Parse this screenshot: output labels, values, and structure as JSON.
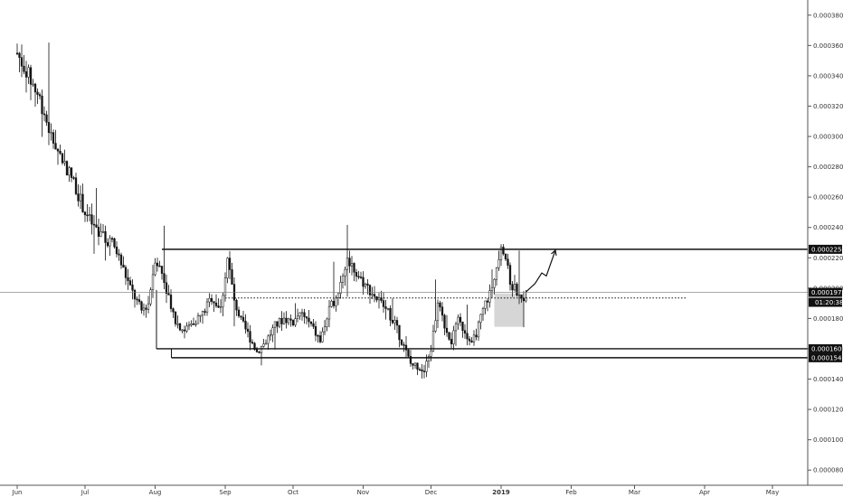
{
  "chart_data": {
    "type": "candlestick",
    "ylim": [
      7e-05,
      0.00039
    ],
    "y_ticks": [
      "0.0000800",
      "0.0001000",
      "0.0001200",
      "0.0001400",
      "0.0001600",
      "0.0001800",
      "0.0002000",
      "0.0002200",
      "0.0002400",
      "0.0002600",
      "0.0002800",
      "0.0003000",
      "0.0003200",
      "0.0003400",
      "0.0003600",
      "0.0003800"
    ],
    "x_ticks": [
      {
        "label": "Jun",
        "day": 0
      },
      {
        "label": "Jul",
        "day": 30
      },
      {
        "label": "Aug",
        "day": 61
      },
      {
        "label": "Sep",
        "day": 92
      },
      {
        "label": "Oct",
        "day": 122
      },
      {
        "label": "Nov",
        "day": 153
      },
      {
        "label": "Dec",
        "day": 183
      },
      {
        "label": "2019",
        "day": 214,
        "bold": true
      },
      {
        "label": "Feb",
        "day": 245
      },
      {
        "label": "Mar",
        "day": 273
      },
      {
        "label": "Apr",
        "day": 304
      },
      {
        "label": "May",
        "day": 334
      }
    ],
    "price_path": [
      [
        0,
        0.000355
      ],
      [
        5,
        0.00034
      ],
      [
        10,
        0.000325
      ],
      [
        15,
        0.0003
      ],
      [
        20,
        0.000285
      ],
      [
        25,
        0.00027
      ],
      [
        30,
        0.00025
      ],
      [
        36,
        0.000235
      ],
      [
        42,
        0.00023
      ],
      [
        45,
        0.00022
      ],
      [
        50,
        0.0002
      ],
      [
        55,
        0.000185
      ],
      [
        58,
        0.00019
      ],
      [
        61,
        0.00022
      ],
      [
        64,
        0.00021
      ],
      [
        67,
        0.000195
      ],
      [
        70,
        0.000178
      ],
      [
        74,
        0.000172
      ],
      [
        78,
        0.000178
      ],
      [
        82,
        0.000183
      ],
      [
        86,
        0.000194
      ],
      [
        90,
        0.000186
      ],
      [
        93,
        0.00022
      ],
      [
        96,
        0.000192
      ],
      [
        99,
        0.000178
      ],
      [
        102,
        0.00017
      ],
      [
        106,
        0.000158
      ],
      [
        110,
        0.000165
      ],
      [
        114,
        0.000175
      ],
      [
        118,
        0.00018
      ],
      [
        122,
        0.000178
      ],
      [
        126,
        0.000183
      ],
      [
        130,
        0.000175
      ],
      [
        134,
        0.000165
      ],
      [
        138,
        0.000185
      ],
      [
        142,
        0.000198
      ],
      [
        146,
        0.00022
      ],
      [
        150,
        0.00021
      ],
      [
        154,
        0.000202
      ],
      [
        158,
        0.000195
      ],
      [
        162,
        0.000188
      ],
      [
        166,
        0.00018
      ],
      [
        170,
        0.000165
      ],
      [
        174,
        0.00015
      ],
      [
        178,
        0.000148
      ],
      [
        180,
        0.000145
      ],
      [
        183,
        0.00016
      ],
      [
        186,
        0.00019
      ],
      [
        189,
        0.000175
      ],
      [
        192,
        0.000165
      ],
      [
        195,
        0.000178
      ],
      [
        198,
        0.000172
      ],
      [
        201,
        0.000162
      ],
      [
        204,
        0.000175
      ],
      [
        207,
        0.00019
      ],
      [
        210,
        0.0002
      ],
      [
        212,
        0.000215
      ],
      [
        214,
        0.00023
      ],
      [
        216,
        0.00022
      ],
      [
        218,
        0.000203
      ],
      [
        220,
        0.0002
      ],
      [
        222,
        0.000197
      ],
      [
        223,
        0.000192
      ],
      [
        225,
        0.000197
      ]
    ],
    "levels": [
      {
        "value": "0.0002256",
        "price": 0.0002256
      },
      {
        "value": "0.0001600",
        "price": 0.00016
      },
      {
        "value": "0.0001541",
        "price": 0.0001541
      }
    ],
    "last_price": {
      "value": "0.0001972",
      "countdown": "01:20:38",
      "price": 0.0001972
    },
    "pivot_line_price": 0.0001935,
    "range_box": {
      "start_day": 64,
      "end_day": 214,
      "top": 0.0002256,
      "bottom": 0.00016
    },
    "lower_box": {
      "start_day": 67,
      "end_day": 214,
      "bottom": 0.0001541
    },
    "target_zone": {
      "start_day": 211,
      "end_day": 224,
      "top": 0.0001965,
      "bottom": 0.0001745
    },
    "dotted_line": {
      "start_day": 92,
      "end_day": 296,
      "price": 0.0001935
    },
    "projection_arrow": [
      [
        225,
        0.0001975
      ],
      [
        229,
        0.000203
      ],
      [
        232,
        0.00021
      ],
      [
        234,
        0.000208
      ],
      [
        238,
        0.000225
      ]
    ]
  }
}
